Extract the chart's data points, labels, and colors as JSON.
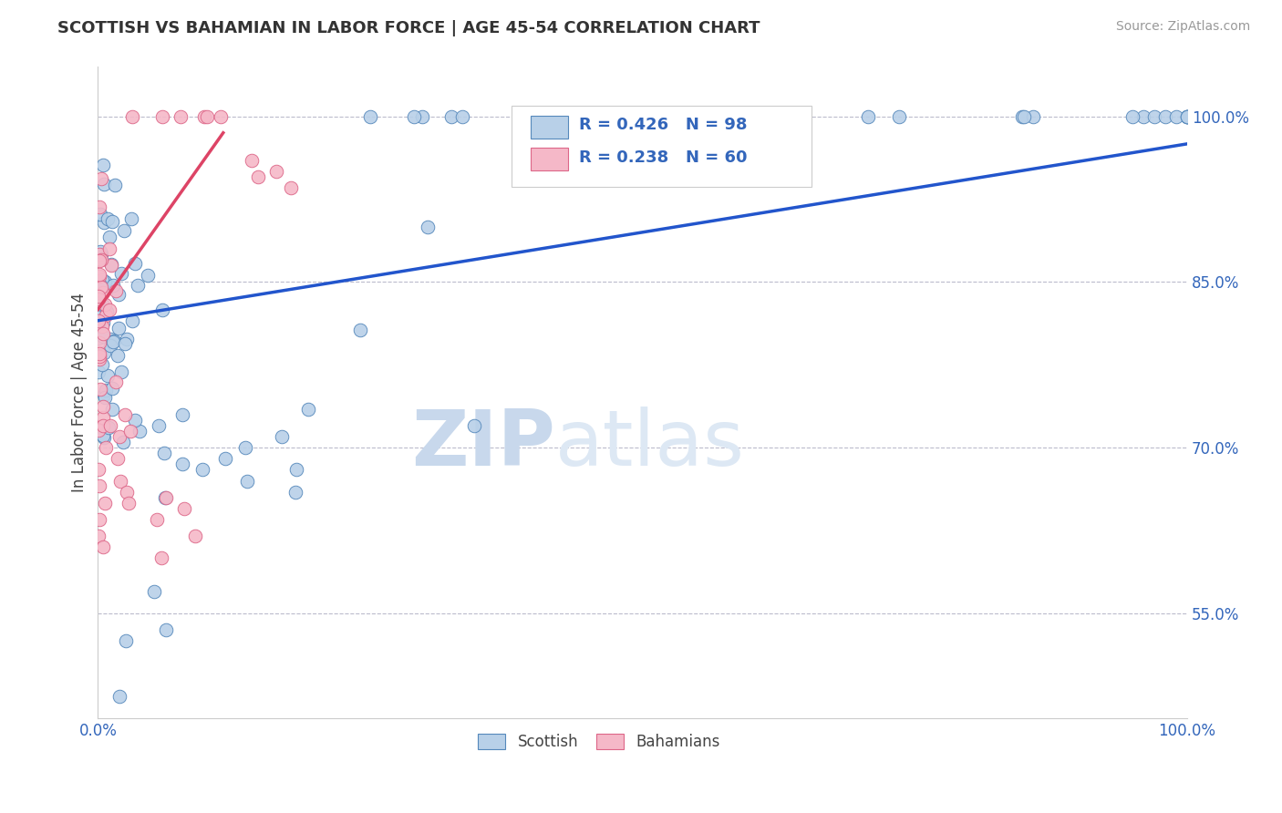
{
  "title": "SCOTTISH VS BAHAMIAN IN LABOR FORCE | AGE 45-54 CORRELATION CHART",
  "source_text": "Source: ZipAtlas.com",
  "ylabel": "In Labor Force | Age 45-54",
  "xlim": [
    0.0,
    1.0
  ],
  "ylim": [
    0.455,
    1.045
  ],
  "yticks": [
    0.55,
    0.7,
    0.85,
    1.0
  ],
  "ytick_labels": [
    "55.0%",
    "70.0%",
    "85.0%",
    "100.0%"
  ],
  "xticks": [
    0.0,
    1.0
  ],
  "xtick_labels": [
    "0.0%",
    "100.0%"
  ],
  "blue_color": "#b8d0e8",
  "blue_edge": "#5588bb",
  "pink_color": "#f5b8c8",
  "pink_edge": "#dd6688",
  "trend_blue": "#2255cc",
  "trend_pink": "#dd4466",
  "legend_text_1": "R = 0.426   N = 98",
  "legend_text_2": "R = 0.238   N = 60",
  "watermark": "ZIPatlas",
  "watermark_color": "#cddff0",
  "label_blue": "Scottish",
  "label_pink": "Bahamians",
  "blue_trend_x": [
    0.0,
    1.0
  ],
  "blue_trend_y": [
    0.815,
    0.975
  ],
  "pink_trend_x": [
    0.0,
    0.115
  ],
  "pink_trend_y": [
    0.825,
    0.985
  ],
  "title_fontsize": 13,
  "tick_fontsize": 12,
  "legend_fontsize": 13
}
